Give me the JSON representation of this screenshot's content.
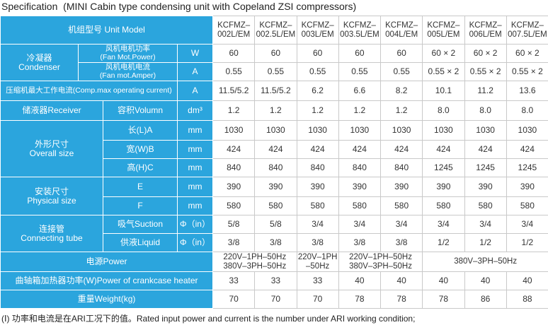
{
  "title": "Specification  (MINI Cabin type condensing unit with Copeland ZSI compressors)",
  "table": {
    "model_label": "机组型号 Unit Model",
    "models": [
      "KCFMZ–\n002L/EM",
      "KCFMZ–\n002.5L/EM",
      "KCFMZ–\n003L/EM",
      "KCFMZ–\n003.5L/EM",
      "KCFMZ–\n004L/EM",
      "KCFMZ–\n005L/EM",
      "KCFMZ–\n006L/EM",
      "KCFMZ–\n007.5L/EM"
    ],
    "sections": [
      {
        "label": "冷凝器\nCondenser",
        "rows": [
          {
            "label": "风机电机功率\n(Fan Mot.Power)",
            "unit": "W",
            "values": [
              "60",
              "60",
              "60",
              "60",
              "60",
              "60 × 2",
              "60 × 2",
              "60 × 2"
            ]
          },
          {
            "label": "风机电机电流\n(Fan mot.Amper)",
            "unit": "A",
            "values": [
              "0.55",
              "0.55",
              "0.55",
              "0.55",
              "0.55",
              "0.55 × 2",
              "0.55 × 2",
              "0.55 × 2"
            ]
          }
        ]
      },
      {
        "label": "压缩机最大工作电流(Comp.max operating current)",
        "unit": "A",
        "values": [
          "11.5/5.2",
          "11.5/5.2",
          "6.2",
          "6.6",
          "8.2",
          "10.1",
          "11.2",
          "13.6"
        ]
      },
      {
        "label": "储液器Receiver",
        "rows": [
          {
            "label": "容积Volumn",
            "unit": "dm³",
            "values": [
              "1.2",
              "1.2",
              "1.2",
              "1.2",
              "1.2",
              "8.0",
              "8.0",
              "8.0"
            ]
          }
        ]
      },
      {
        "label": "外形尺寸\nOverall size",
        "rows": [
          {
            "label": "长(L)A",
            "unit": "mm",
            "values": [
              "1030",
              "1030",
              "1030",
              "1030",
              "1030",
              "1030",
              "1030",
              "1030"
            ]
          },
          {
            "label": "宽(W)B",
            "unit": "mm",
            "values": [
              "424",
              "424",
              "424",
              "424",
              "424",
              "424",
              "424",
              "424"
            ]
          },
          {
            "label": "高(H)C",
            "unit": "mm",
            "values": [
              "840",
              "840",
              "840",
              "840",
              "840",
              "1245",
              "1245",
              "1245"
            ]
          }
        ]
      },
      {
        "label": "安装尺寸\nPhysical size",
        "rows": [
          {
            "label": "E",
            "unit": "mm",
            "values": [
              "390",
              "390",
              "390",
              "390",
              "390",
              "390",
              "390",
              "390"
            ]
          },
          {
            "label": "F",
            "unit": "mm",
            "values": [
              "580",
              "580",
              "580",
              "580",
              "580",
              "580",
              "580",
              "580"
            ]
          }
        ]
      },
      {
        "label": "连接管\nConnecting tube",
        "rows": [
          {
            "label": "吸气Suction",
            "unit": "Φ（in）",
            "values": [
              "5/8",
              "5/8",
              "3/4",
              "3/4",
              "3/4",
              "3/4",
              "3/4",
              "3/4"
            ]
          },
          {
            "label": "供液Liquid",
            "unit": "Φ（in）",
            "values": [
              "3/8",
              "3/8",
              "3/8",
              "3/8",
              "3/8",
              "1/2",
              "1/2",
              "1/2"
            ]
          }
        ]
      },
      {
        "label": "电源Power",
        "values": [
          "220V–1PH–50Hz\n380V–3PH–50Hz",
          "220V–1PH\n–50Hz",
          "220V–1PH–50Hz\n380V–3PH–50Hz",
          "380V–3PH–50Hz"
        ]
      },
      {
        "label": "曲轴箱加热器功率(W)Power of crankcase heater",
        "values": [
          "33",
          "33",
          "33",
          "40",
          "40",
          "40",
          "40",
          "40"
        ]
      },
      {
        "label": "重量Weight(kg)",
        "values": [
          "70",
          "70",
          "70",
          "78",
          "78",
          "78",
          "86",
          "88"
        ]
      }
    ]
  },
  "footnote": "(Ⅰ) 功率和电流是在ARI工况下的值。Rated input power and current is the number under ARI working condition;"
}
